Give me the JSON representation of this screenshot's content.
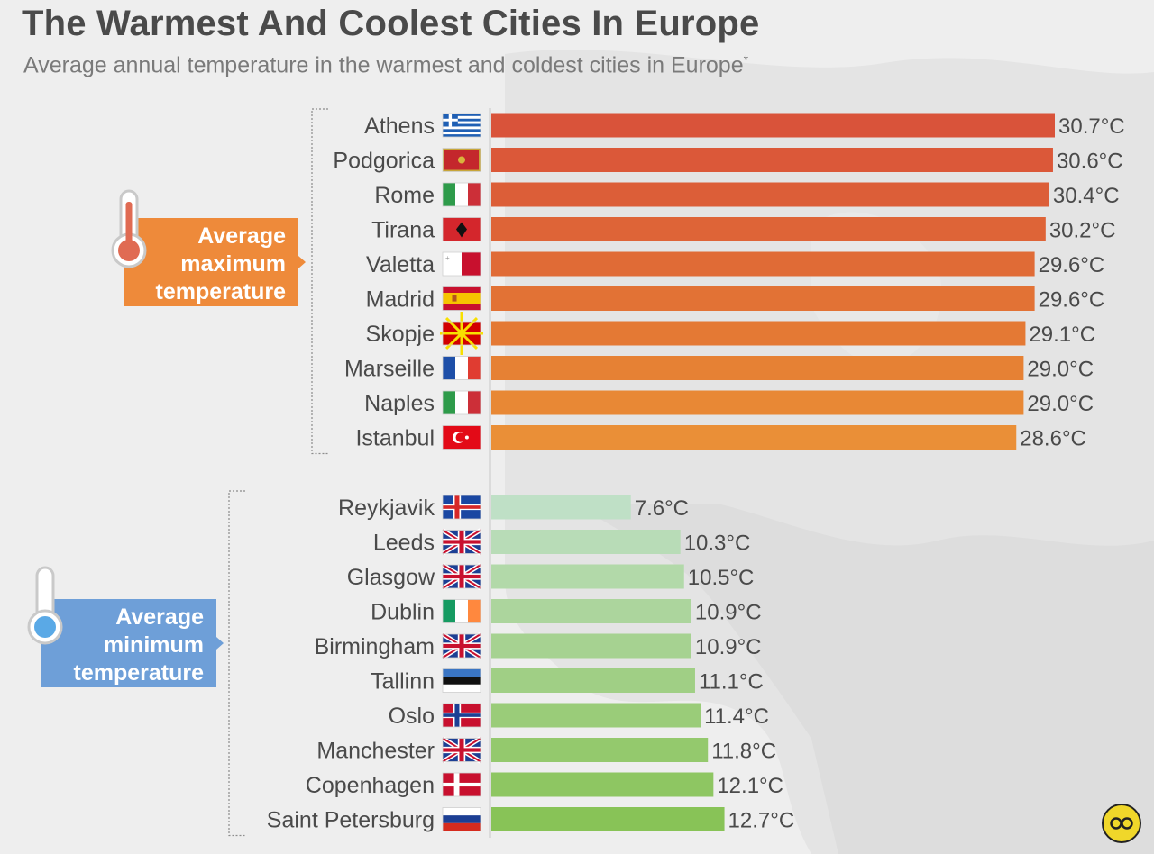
{
  "title": "The Warmest And Coolest Cities In Europe",
  "subtitle": "Average annual temperature in the warmest and coldest cities in Europe",
  "subtitle_mark": "*",
  "chart_data": {
    "type": "bar",
    "orientation": "horizontal",
    "unit": "°C",
    "groups": [
      {
        "name": "Average maximum temperature",
        "name_lines": [
          "Average",
          "maximum",
          "temperature"
        ],
        "badge_color": "#ee8a3a",
        "icon": "thermometer-hot-icon",
        "categories": [
          "Athens",
          "Podgorica",
          "Rome",
          "Tirana",
          "Valetta",
          "Madrid",
          "Skopje",
          "Marseille",
          "Naples",
          "Istanbul"
        ],
        "flags": [
          "greece",
          "montenegro",
          "italy",
          "albania",
          "malta",
          "spain",
          "north-macedonia",
          "france",
          "italy",
          "turkey"
        ],
        "values": [
          30.7,
          30.6,
          30.4,
          30.2,
          29.6,
          29.6,
          29.1,
          29.0,
          29.0,
          28.6
        ],
        "value_labels": [
          "30.7°C",
          "30.6°C",
          "30.4°C",
          "30.2°C",
          "29.6°C",
          "29.6°C",
          "29.1°C",
          "29.0°C",
          "29.0°C",
          "28.6°C"
        ],
        "colors": [
          "#d9533a",
          "#db5839",
          "#dc5e38",
          "#de6437",
          "#e06b36",
          "#e27235",
          "#e47934",
          "#e68134",
          "#e88835",
          "#ea8f37"
        ]
      },
      {
        "name": "Average minimum temperature",
        "name_lines": [
          "Average",
          "minimum",
          "temperature"
        ],
        "badge_color": "#6e9fd8",
        "icon": "thermometer-cold-icon",
        "categories": [
          "Reykjavik",
          "Leeds",
          "Glasgow",
          "Dublin",
          "Birmingham",
          "Tallinn",
          "Oslo",
          "Manchester",
          "Copenhagen",
          "Saint Petersburg"
        ],
        "flags": [
          "iceland",
          "uk",
          "uk",
          "ireland",
          "uk",
          "estonia",
          "norway",
          "uk",
          "denmark",
          "russia"
        ],
        "values": [
          7.6,
          10.3,
          10.5,
          10.9,
          10.9,
          11.1,
          11.4,
          11.8,
          12.1,
          12.7
        ],
        "value_labels": [
          "7.6°C",
          "10.3°C",
          "10.5°C",
          "10.9°C",
          "10.9°C",
          "11.1°C",
          "11.4°C",
          "11.8°C",
          "12.1°C",
          "12.7°C"
        ],
        "colors": [
          "#bfe0c6",
          "#b8dcb7",
          "#b2d9a9",
          "#acd59d",
          "#a6d291",
          "#a0cf85",
          "#9acc79",
          "#94c96d",
          "#8ec662",
          "#88c357"
        ]
      }
    ]
  }
}
